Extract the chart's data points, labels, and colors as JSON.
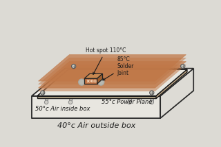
{
  "bg_color": "#dcdad4",
  "box_top_color": "#f0eeea",
  "box_front_color": "#e8e6e0",
  "box_right_color": "#dddbd5",
  "box_left_color": "#e2e0da",
  "box_edge_color": "#2a2a2a",
  "pcb_top_color": "#e8e7e0",
  "pcb_edge_color": "#1a1a1a",
  "pcb_front_color": "#c8b898",
  "pcb_right_color": "#c0a888",
  "copper_color": "#c07848",
  "copper_alpha": 0.75,
  "resistor_front_color": "#c07040",
  "resistor_top_color": "#c88850",
  "resistor_right_color": "#a06030",
  "solder_color": "#b8b8b0",
  "cap_color": "#a8a8a0",
  "screw_color": "#c8c8c0",
  "leg_color": "#d0cec8",
  "font_color": "#1a1a1a",
  "font_size": 6.0,
  "label_hotspot": "Hot spot 110°C",
  "label_solder": "85°C\nSolder\nJoint",
  "label_air_inside": "50°c Air inside box",
  "label_power_plane": "55°c Power Plane",
  "label_air_outside": "40°c Air outside box",
  "label_resistor": "100Ω"
}
